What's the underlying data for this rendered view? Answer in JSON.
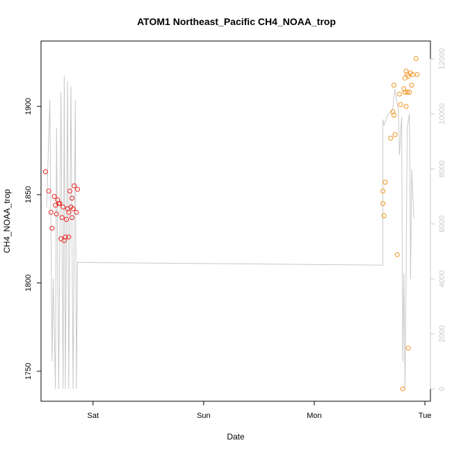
{
  "chart_data": {
    "type": "scatter",
    "title": "ATOM1 Northeast_Pacific CH4_NOAA_trop",
    "xlabel": "Date",
    "ylabel": "CH4_NOAA_trop",
    "x_ticks": [
      {
        "label": "Sat",
        "day": 1
      },
      {
        "label": "Sun",
        "day": 2
      },
      {
        "label": "Mon",
        "day": 3
      },
      {
        "label": "Tue",
        "day": 4
      }
    ],
    "xlim": [
      0.53,
      4.05
    ],
    "ylim": [
      1733,
      1937
    ],
    "y_ticks": [
      1750,
      1800,
      1850,
      1900
    ],
    "y2_lim": [
      -450,
      12650
    ],
    "y2_ticks": [
      0,
      2000,
      4000,
      6000,
      8000,
      10000,
      12000
    ],
    "colors": {
      "series_a": "#e8201c",
      "series_b": "#f0901c",
      "altitude": "#c8c8c8"
    },
    "series": [
      {
        "color": "series_a",
        "points": [
          [
            0.57,
            1863
          ],
          [
            0.6,
            1852
          ],
          [
            0.62,
            1840
          ],
          [
            0.63,
            1831
          ],
          [
            0.65,
            1849
          ],
          [
            0.66,
            1844
          ],
          [
            0.67,
            1839
          ],
          [
            0.68,
            1847
          ],
          [
            0.69,
            1845
          ],
          [
            0.7,
            1845
          ],
          [
            0.71,
            1825
          ],
          [
            0.72,
            1837
          ],
          [
            0.73,
            1843
          ],
          [
            0.74,
            1824
          ],
          [
            0.75,
            1826
          ],
          [
            0.76,
            1836
          ],
          [
            0.77,
            1842
          ],
          [
            0.78,
            1826
          ],
          [
            0.78,
            1840
          ],
          [
            0.79,
            1852
          ],
          [
            0.8,
            1843
          ],
          [
            0.81,
            1848
          ],
          [
            0.81,
            1837
          ],
          [
            0.82,
            1842
          ],
          [
            0.83,
            1855
          ],
          [
            0.85,
            1840
          ],
          [
            0.86,
            1853
          ]
        ]
      },
      {
        "color": "series_b",
        "points": [
          [
            3.62,
            1852
          ],
          [
            3.62,
            1845
          ],
          [
            3.63,
            1838
          ],
          [
            3.64,
            1857
          ],
          [
            3.69,
            1882
          ],
          [
            3.71,
            1897
          ],
          [
            3.72,
            1912
          ],
          [
            3.72,
            1895
          ],
          [
            3.73,
            1884
          ],
          [
            3.75,
            1816
          ],
          [
            3.77,
            1907
          ],
          [
            3.78,
            1901
          ],
          [
            3.8,
            1740
          ],
          [
            3.81,
            1910
          ],
          [
            3.82,
            1908
          ],
          [
            3.82,
            1916
          ],
          [
            3.83,
            1900
          ],
          [
            3.83,
            1920
          ],
          [
            3.84,
            1918
          ],
          [
            3.84,
            1908
          ],
          [
            3.85,
            1917
          ],
          [
            3.85,
            1763
          ],
          [
            3.86,
            1908
          ],
          [
            3.87,
            1919
          ],
          [
            3.88,
            1912
          ],
          [
            3.89,
            1918
          ],
          [
            3.92,
            1927
          ],
          [
            3.93,
            1918
          ]
        ]
      }
    ],
    "altitude_line": [
      [
        0.58,
        6600
      ],
      [
        0.61,
        10500
      ],
      [
        0.63,
        1000
      ],
      [
        0.64,
        4000
      ],
      [
        0.66,
        0
      ],
      [
        0.67,
        9500
      ],
      [
        0.69,
        0
      ],
      [
        0.71,
        10800
      ],
      [
        0.73,
        0
      ],
      [
        0.74,
        11400
      ],
      [
        0.75,
        0
      ],
      [
        0.77,
        11200
      ],
      [
        0.78,
        0
      ],
      [
        0.8,
        11000
      ],
      [
        0.82,
        0
      ],
      [
        0.84,
        10500
      ],
      [
        0.85,
        0
      ],
      [
        0.86,
        4600
      ],
      [
        3.62,
        4500
      ],
      [
        3.62,
        9800
      ],
      [
        3.63,
        9600
      ],
      [
        3.65,
        9800
      ],
      [
        3.67,
        10000
      ],
      [
        3.7,
        10100
      ],
      [
        3.71,
        10200
      ],
      [
        3.72,
        10600
      ],
      [
        3.73,
        10900
      ],
      [
        3.74,
        10600
      ],
      [
        3.76,
        10100
      ],
      [
        3.77,
        8500
      ],
      [
        3.78,
        9200
      ],
      [
        3.79,
        9900
      ],
      [
        3.8,
        1000
      ],
      [
        3.81,
        4200
      ],
      [
        3.82,
        0
      ],
      [
        3.83,
        4000
      ],
      [
        3.84,
        9500
      ],
      [
        3.86,
        10000
      ],
      [
        3.87,
        4000
      ],
      [
        3.88,
        8000
      ],
      [
        3.9,
        6200
      ]
    ]
  }
}
